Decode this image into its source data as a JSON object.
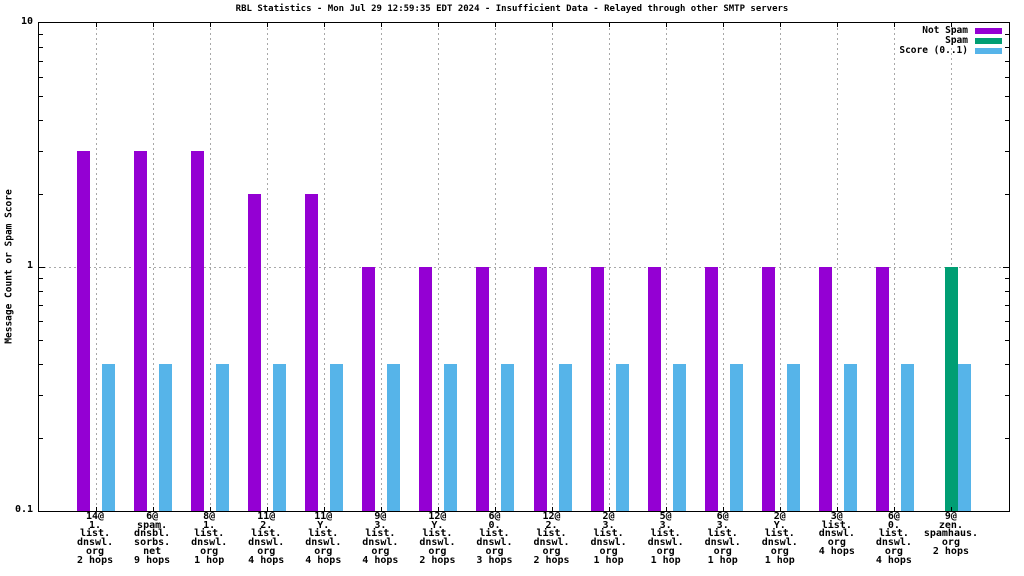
{
  "chart_data": {
    "type": "bar",
    "title": "RBL Statistics - Mon Jul 29 12:59:35 EDT 2024 - Insufficient Data - Relayed through other SMTP servers",
    "ylabel": "Message Count or Spam Score",
    "xlabel": "",
    "yscale": "log",
    "ylim": [
      0.1,
      10
    ],
    "yticks": [
      {
        "value": 0.1,
        "label": "0.1"
      },
      {
        "value": 1,
        "label": "1"
      },
      {
        "value": 10,
        "label": "10"
      }
    ],
    "grid": {
      "horizontal_dotted_at": 1,
      "vertical_dotted_at_each_category": true,
      "color": "#a8a8a8"
    },
    "legend_position": "top-right-inside",
    "background_color": "#ffffff",
    "axis_color": "#000000",
    "categories": [
      [
        "14@",
        "1.",
        "list.",
        "dnswl.",
        "org",
        "2 hops"
      ],
      [
        "6@",
        "spam.",
        "dnsbl.",
        "sorbs.",
        "net",
        "9 hops"
      ],
      [
        "8@",
        "1.",
        "list.",
        "dnswl.",
        "org",
        "1 hop"
      ],
      [
        "11@",
        "2.",
        "list.",
        "dnswl.",
        "org",
        "4 hops"
      ],
      [
        "11@",
        "Y.",
        "list.",
        "dnswl.",
        "org",
        "4 hops"
      ],
      [
        "9@",
        "3.",
        "list.",
        "dnswl.",
        "org",
        "4 hops"
      ],
      [
        "12@",
        "Y.",
        "list.",
        "dnswl.",
        "org",
        "2 hops"
      ],
      [
        "6@",
        "0.",
        "list.",
        "dnswl.",
        "org",
        "3 hops"
      ],
      [
        "12@",
        "2.",
        "list.",
        "dnswl.",
        "org",
        "2 hops"
      ],
      [
        "2@",
        "3.",
        "list.",
        "dnswl.",
        "org",
        "1 hop"
      ],
      [
        "5@",
        "3.",
        "list.",
        "dnswl.",
        "org",
        "1 hop"
      ],
      [
        "6@",
        "3.",
        "list.",
        "dnswl.",
        "org",
        "1 hop"
      ],
      [
        "2@",
        "Y.",
        "list.",
        "dnswl.",
        "org",
        "1 hop"
      ],
      [
        "3@",
        "list.",
        "dnswl.",
        "org",
        "4 hops"
      ],
      [
        "6@",
        "0.",
        "list.",
        "dnswl.",
        "org",
        "4 hops"
      ],
      [
        "9@",
        "zen.",
        "spamhaus.",
        "org",
        "2 hops"
      ]
    ],
    "series": [
      {
        "name": "Not Spam",
        "color": "#9400d3",
        "slot": 0,
        "values": [
          3,
          3,
          3,
          2,
          2,
          1,
          1,
          1,
          1,
          1,
          1,
          1,
          1,
          1,
          1,
          null
        ]
      },
      {
        "name": "Spam",
        "color": "#009e73",
        "slot": 1,
        "values": [
          null,
          null,
          null,
          null,
          null,
          null,
          null,
          null,
          null,
          null,
          null,
          null,
          null,
          null,
          null,
          1
        ]
      },
      {
        "name": "Score (0..1)",
        "color": "#56b4e9",
        "slot": 2,
        "values": [
          0.4,
          0.4,
          0.4,
          0.4,
          0.4,
          0.4,
          0.4,
          0.4,
          0.4,
          0.4,
          0.4,
          0.4,
          0.4,
          0.4,
          0.4,
          0.4
        ]
      }
    ]
  }
}
